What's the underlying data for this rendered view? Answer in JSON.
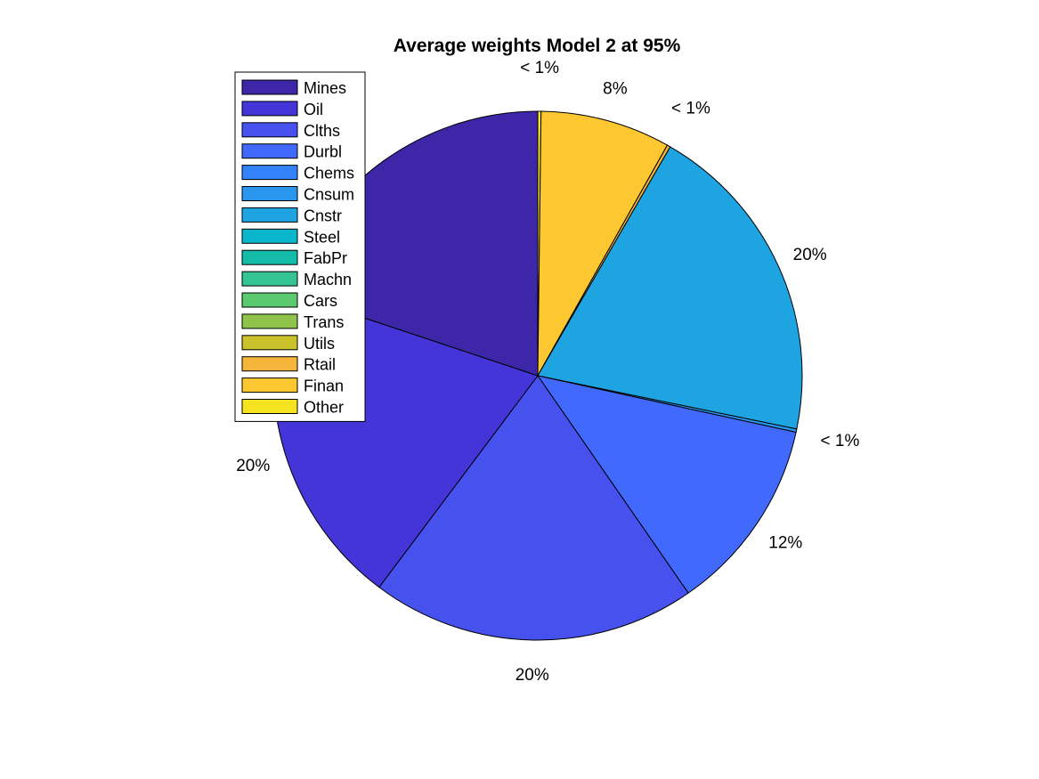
{
  "chart_data": {
    "type": "pie",
    "title": "Average weights Model 2 at 95%",
    "categories": [
      "Mines",
      "Oil",
      "Clths",
      "Durbl",
      "Chems",
      "Cnsum",
      "Cnstr",
      "Steel",
      "FabPr",
      "Machn",
      "Cars",
      "Trans",
      "Utils",
      "Rtail",
      "Finan",
      "Other"
    ],
    "colors": [
      "#3e26a8",
      "#4435d8",
      "#4651ee",
      "#4169fd",
      "#3482fa",
      "#2a96ed",
      "#1fa4e2",
      "#0ab6cc",
      "#14bba9",
      "#34c393",
      "#5ac96f",
      "#8fc44b",
      "#cbc12b",
      "#f5b43a",
      "#fcc730",
      "#f6e31f"
    ],
    "slices": [
      {
        "category": "Other",
        "value": 0.2,
        "label": "< 1%"
      },
      {
        "category": "Finan",
        "value": 8,
        "label": "8%"
      },
      {
        "category": "Rtail",
        "value": 0.2,
        "label": "< 1%"
      },
      {
        "category": "Cnstr",
        "value": 20,
        "label": "20%"
      },
      {
        "category": "Cnsum",
        "value": 0.2,
        "label": "< 1%"
      },
      {
        "category": "Durbl",
        "value": 12,
        "label": "12%"
      },
      {
        "category": "Clths",
        "value": 20,
        "label": "20%"
      },
      {
        "category": "Oil",
        "value": 20,
        "label": "20%"
      },
      {
        "category": "Mines",
        "value": 20,
        "label": ""
      }
    ],
    "legend_position": "top-left-outside"
  }
}
